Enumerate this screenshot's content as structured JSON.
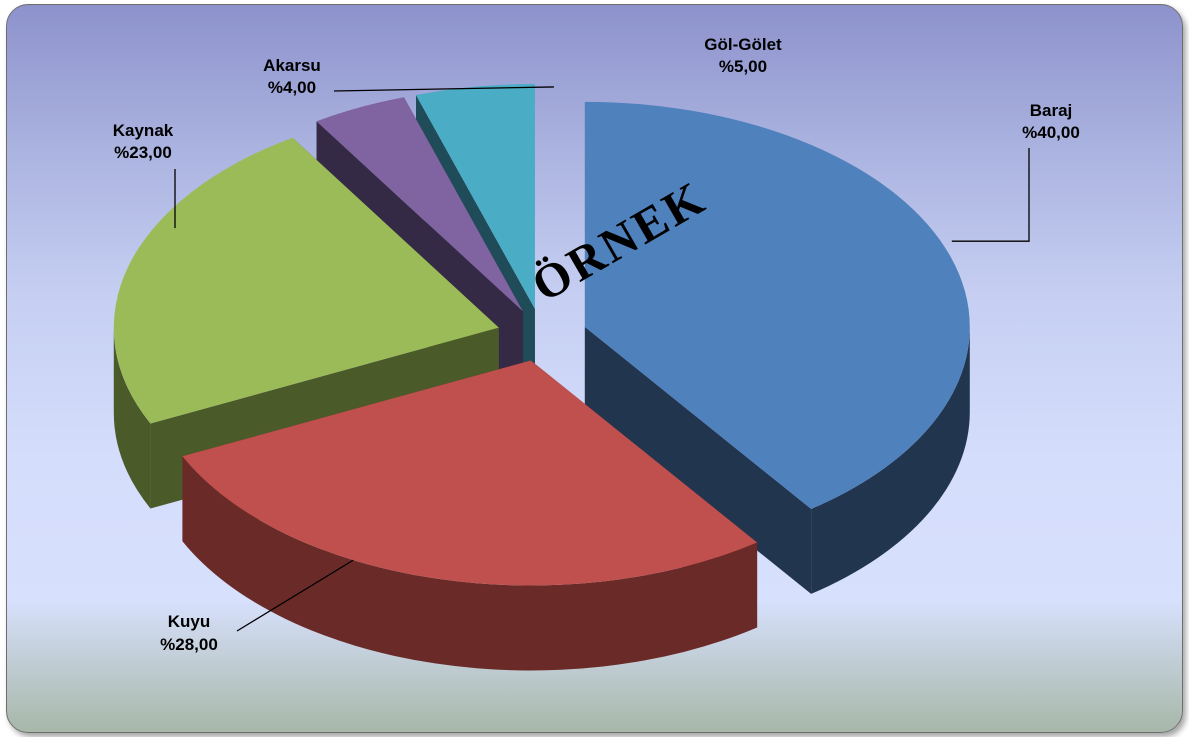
{
  "chart_data": {
    "type": "pie",
    "style": "3d-exploded",
    "title": "",
    "slices": [
      {
        "label": "Baraj",
        "value": 40.0,
        "value_label": "%40,00",
        "color": "#4f81bd",
        "side_color": "#22354f"
      },
      {
        "label": "Kuyu",
        "value": 28.0,
        "value_label": "%28,00",
        "color": "#c0504d",
        "side_color": "#6a2a28"
      },
      {
        "label": "Kaynak",
        "value": 23.0,
        "value_label": "%23,00",
        "color": "#9bbb59",
        "side_color": "#4a5a28"
      },
      {
        "label": "Akarsu",
        "value": 4.0,
        "value_label": "%4,00",
        "color": "#8064a2",
        "side_color": "#352a45"
      },
      {
        "label": "Göl-Gölet",
        "value": 5.0,
        "value_label": "%5,00",
        "color": "#4bacc6",
        "side_color": "#1f4c58"
      }
    ],
    "watermark": "ÖRNEK"
  }
}
